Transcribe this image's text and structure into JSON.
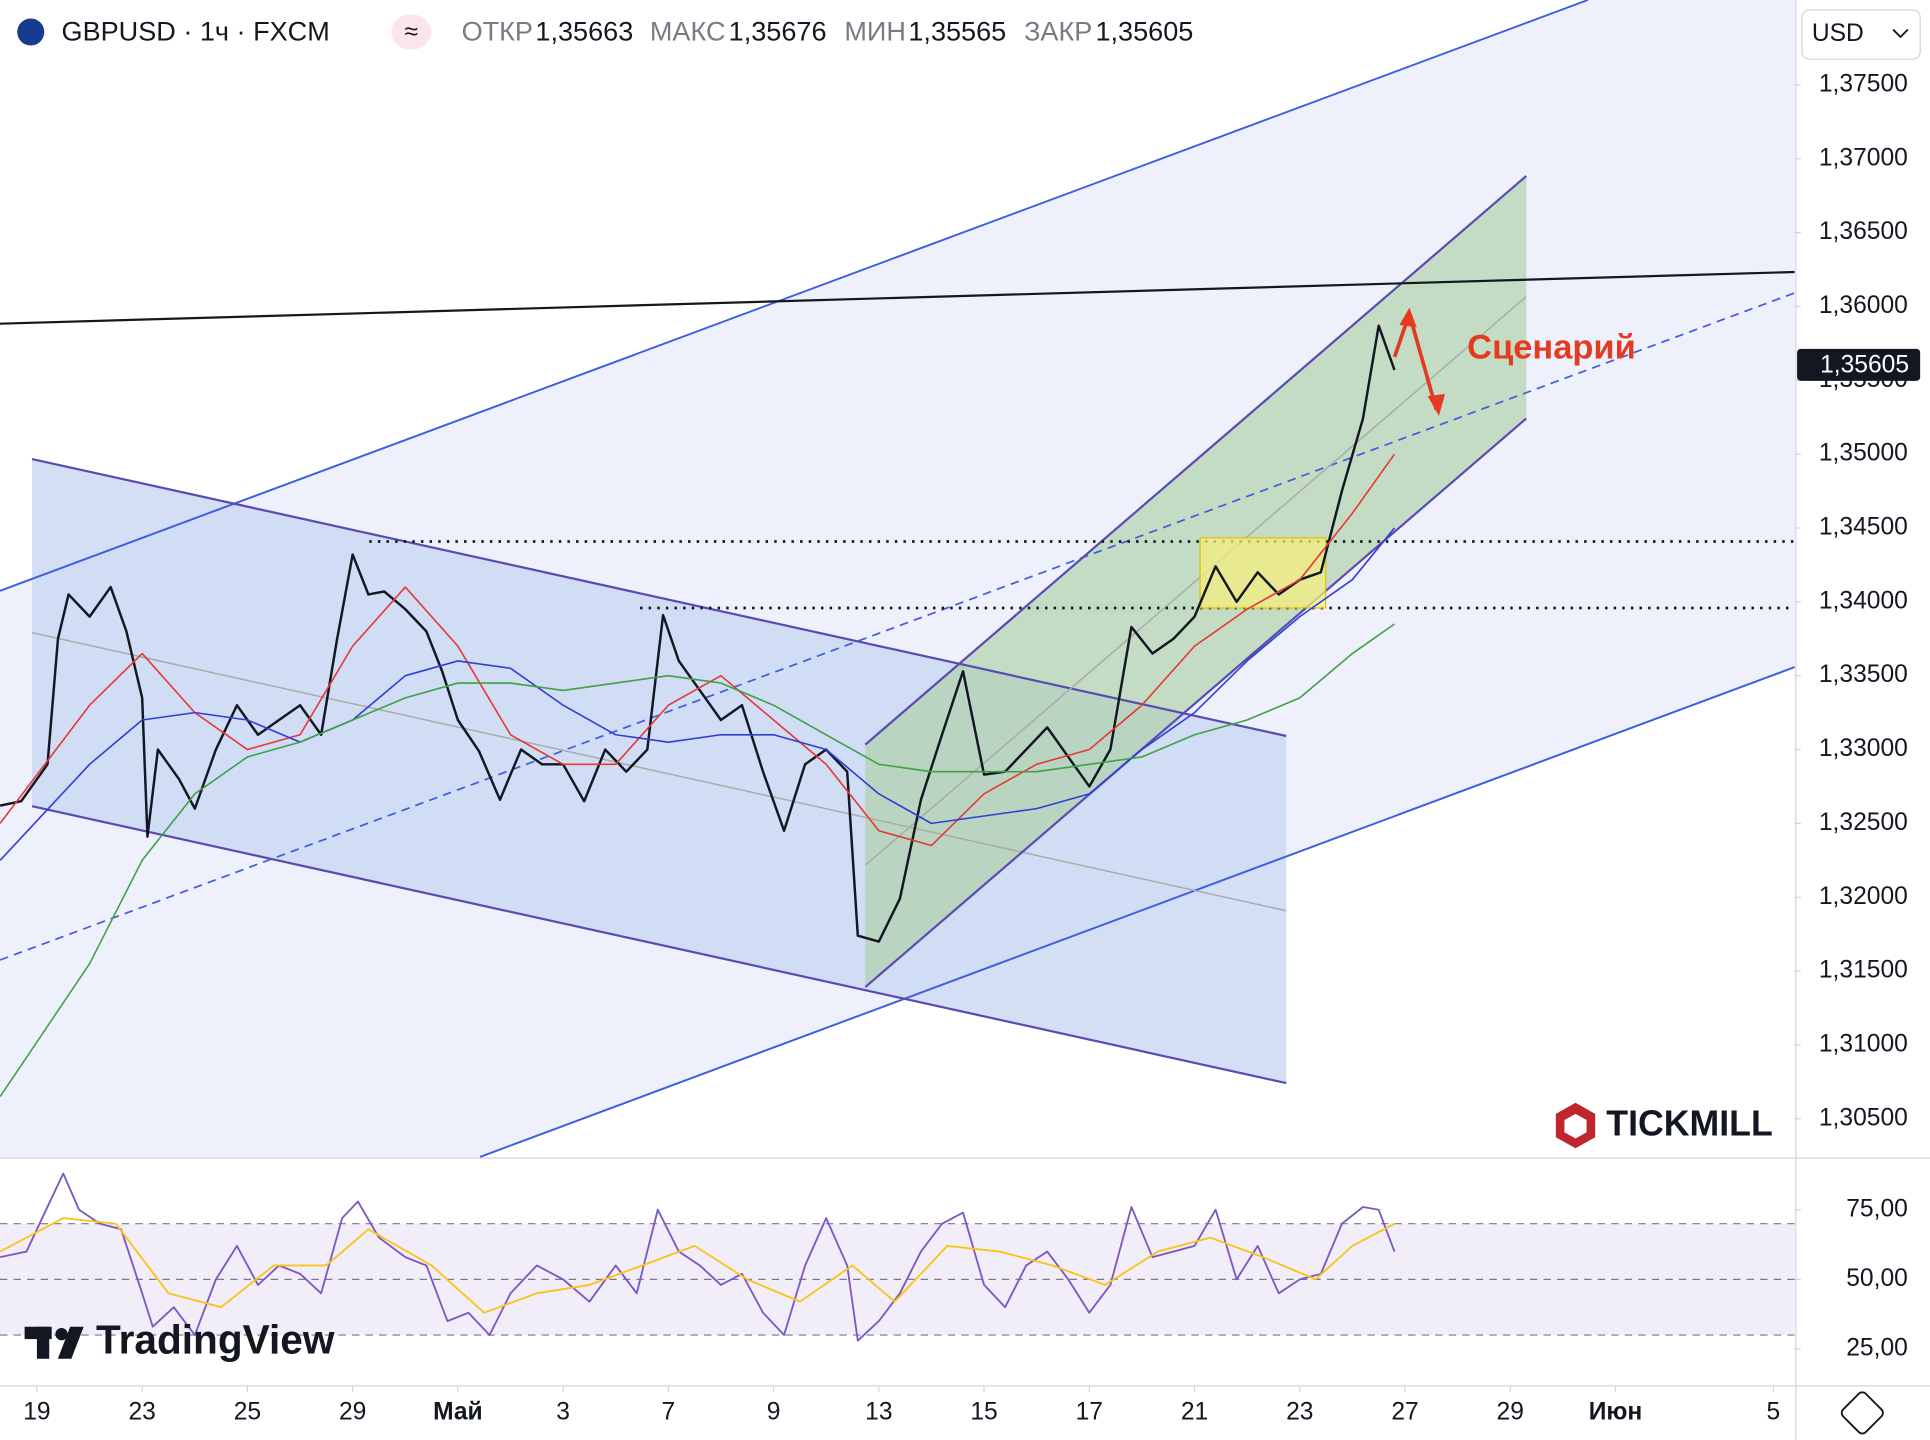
{
  "header": {
    "symbol": "GBPUSD · 1ч · FXCM",
    "ohlc": [
      {
        "label": "ОТКР",
        "value": "1,35663"
      },
      {
        "label": "МАКС",
        "value": "1,35676"
      },
      {
        "label": "МИН",
        "value": "1,35565"
      },
      {
        "label": "ЗАКР",
        "value": "1,35605"
      }
    ],
    "currency": "USD"
  },
  "annotations": {
    "scenario": "Сценарий"
  },
  "watermarks": {
    "broker": "TICKMILL",
    "platform": "TradingView"
  },
  "chart_data": [
    {
      "type": "line",
      "xlim": [
        -0.702,
        33.404
      ],
      "ylim": [
        1.30242,
        1.38075
      ],
      "yticks": [
        {
          "value": 1.305,
          "label": "1,30500"
        },
        {
          "value": 1.31,
          "label": "1,31000"
        },
        {
          "value": 1.315,
          "label": "1,31500"
        },
        {
          "value": 1.32,
          "label": "1,32000"
        },
        {
          "value": 1.325,
          "label": "1,32500"
        },
        {
          "value": 1.33,
          "label": "1,33000"
        },
        {
          "value": 1.335,
          "label": "1,33500"
        },
        {
          "value": 1.34,
          "label": "1,34000"
        },
        {
          "value": 1.345,
          "label": "1,34500"
        },
        {
          "value": 1.35,
          "label": "1,35000"
        },
        {
          "value": 1.355,
          "label": "1,35500"
        },
        {
          "value": 1.36,
          "label": "1,36000"
        },
        {
          "value": 1.365,
          "label": "1,36500"
        },
        {
          "value": 1.37,
          "label": "1,37000"
        },
        {
          "value": 1.375,
          "label": "1,37500"
        }
      ],
      "last_price": 1.35605,
      "series": [
        {
          "color": "#131722",
          "width": 2,
          "x": [
            -0.7,
            -0.3,
            0.2,
            0.4,
            0.6,
            1.0,
            1.4,
            1.7,
            2.0,
            2.1,
            2.3,
            2.7,
            3.0,
            3.4,
            3.8,
            4.2,
            4.6,
            5.0,
            5.4,
            5.7,
            6.0,
            6.3,
            6.6,
            7.0,
            7.4,
            7.7,
            8.0,
            8.4,
            8.8,
            9.2,
            9.6,
            10.0,
            10.4,
            10.8,
            11.2,
            11.6,
            11.9,
            12.2,
            12.6,
            13.0,
            13.4,
            13.8,
            14.2,
            14.6,
            15.0,
            15.4,
            15.6,
            16.0,
            16.4,
            16.8,
            17.2,
            17.6,
            18.0,
            18.4,
            18.8,
            19.2,
            19.6,
            20.0,
            20.4,
            20.8,
            21.2,
            21.6,
            22.0,
            22.4,
            22.8,
            23.2,
            23.6,
            24.0,
            24.4,
            24.8,
            25.2,
            25.5,
            25.8
          ],
          "values": [
            1.3262,
            1.3265,
            1.329,
            1.3375,
            1.3405,
            1.339,
            1.341,
            1.338,
            1.3335,
            1.3241,
            1.33,
            1.328,
            1.326,
            1.33,
            1.333,
            1.331,
            1.332,
            1.333,
            1.331,
            1.3374,
            1.3432,
            1.3405,
            1.3407,
            1.3395,
            1.338,
            1.3353,
            1.332,
            1.3299,
            1.3266,
            1.33,
            1.329,
            1.329,
            1.3265,
            1.33,
            1.3285,
            1.33,
            1.3391,
            1.336,
            1.334,
            1.332,
            1.333,
            1.3285,
            1.3245,
            1.329,
            1.33,
            1.3285,
            1.3174,
            1.317,
            1.3199,
            1.3266,
            1.331,
            1.3353,
            1.3283,
            1.3285,
            1.33,
            1.3315,
            1.3295,
            1.3275,
            1.33,
            1.3383,
            1.3365,
            1.3375,
            1.339,
            1.3424,
            1.34,
            1.342,
            1.3405,
            1.3415,
            1.342,
            1.3475,
            1.3524,
            1.3587,
            1.3557
          ]
        },
        {
          "color": "#e53935",
          "width": 1.3,
          "x": [
            -0.7,
            1,
            2,
            3,
            4,
            5,
            6,
            7,
            8,
            9,
            10,
            11,
            12,
            13,
            14,
            15,
            16,
            17,
            18,
            19,
            20,
            21,
            22,
            23,
            24,
            25,
            25.8
          ],
          "values": [
            1.325,
            1.333,
            1.3365,
            1.3325,
            1.33,
            1.331,
            1.337,
            1.341,
            1.337,
            1.331,
            1.329,
            1.329,
            1.333,
            1.335,
            1.332,
            1.329,
            1.3245,
            1.3235,
            1.327,
            1.329,
            1.33,
            1.333,
            1.337,
            1.3395,
            1.3415,
            1.346,
            1.35
          ]
        },
        {
          "color": "#2f3fd6",
          "width": 1.3,
          "x": [
            -0.7,
            1,
            2,
            3,
            4,
            5,
            6,
            7,
            8,
            9,
            10,
            11,
            12,
            13,
            14,
            15,
            16,
            17,
            18,
            19,
            20,
            21,
            22,
            23,
            24,
            25,
            25.8
          ],
          "values": [
            1.3225,
            1.329,
            1.332,
            1.3325,
            1.332,
            1.3305,
            1.332,
            1.335,
            1.336,
            1.3355,
            1.333,
            1.331,
            1.3305,
            1.331,
            1.331,
            1.33,
            1.327,
            1.325,
            1.3255,
            1.326,
            1.327,
            1.33,
            1.3325,
            1.336,
            1.339,
            1.3415,
            1.345
          ]
        },
        {
          "color": "#43a047",
          "width": 1.3,
          "x": [
            -0.7,
            1,
            2,
            3,
            4,
            5,
            6,
            7,
            8,
            9,
            10,
            11,
            12,
            13,
            14,
            15,
            16,
            17,
            18,
            19,
            20,
            21,
            22,
            23,
            24,
            25,
            25.8
          ],
          "values": [
            1.3065,
            1.3155,
            1.3225,
            1.327,
            1.3295,
            1.3305,
            1.332,
            1.3335,
            1.3345,
            1.3345,
            1.334,
            1.3345,
            1.335,
            1.3345,
            1.333,
            1.331,
            1.329,
            1.3285,
            1.3285,
            1.3285,
            1.329,
            1.3295,
            1.331,
            1.332,
            1.3335,
            1.3365,
            1.3385
          ]
        }
      ]
    },
    {
      "type": "line",
      "xlim": [
        -0.702,
        33.404
      ],
      "ylim": [
        12.2,
        93.1
      ],
      "yticks": [
        {
          "value": 25,
          "label": "25,00"
        },
        {
          "value": 50,
          "label": "50,00"
        },
        {
          "value": 75,
          "label": "75,00"
        }
      ],
      "band": [
        30,
        70
      ],
      "hlines": [
        70,
        50,
        30
      ],
      "xticks": [
        {
          "value": 0,
          "label": "19"
        },
        {
          "value": 2,
          "label": "23"
        },
        {
          "value": 4,
          "label": "25"
        },
        {
          "value": 6,
          "label": "29"
        },
        {
          "value": 8,
          "label": "Май"
        },
        {
          "value": 10,
          "label": "3"
        },
        {
          "value": 12,
          "label": "7"
        },
        {
          "value": 14,
          "label": "9"
        },
        {
          "value": 16,
          "label": "13"
        },
        {
          "value": 18,
          "label": "15"
        },
        {
          "value": 20,
          "label": "17"
        },
        {
          "value": 22,
          "label": "21"
        },
        {
          "value": 24,
          "label": "23"
        },
        {
          "value": 26,
          "label": "27"
        },
        {
          "value": 28,
          "label": "29"
        },
        {
          "value": 30,
          "label": "Июн"
        },
        {
          "value": 33,
          "label": "5"
        }
      ],
      "series": [
        {
          "color": "#7e57c2",
          "width": 1.5,
          "x": [
            -0.7,
            -0.2,
            0.3,
            0.5,
            0.8,
            1.2,
            1.6,
            2.0,
            2.2,
            2.6,
            3.0,
            3.4,
            3.8,
            4.2,
            4.6,
            5.0,
            5.4,
            5.8,
            6.1,
            6.5,
            7.0,
            7.4,
            7.8,
            8.2,
            8.6,
            9.0,
            9.5,
            10.0,
            10.5,
            11.0,
            11.4,
            11.8,
            12.2,
            12.6,
            13.0,
            13.4,
            13.8,
            14.2,
            14.6,
            15.0,
            15.4,
            15.6,
            16.0,
            16.4,
            16.8,
            17.2,
            17.6,
            18.0,
            18.4,
            18.8,
            19.2,
            19.6,
            20.0,
            20.4,
            20.8,
            21.2,
            21.6,
            22.0,
            22.4,
            22.8,
            23.2,
            23.6,
            24.0,
            24.4,
            24.8,
            25.2,
            25.5,
            25.8
          ],
          "values": [
            58,
            60,
            80,
            88,
            75,
            70,
            68,
            45,
            33,
            40,
            30,
            50,
            62,
            48,
            55,
            52,
            45,
            72,
            78,
            65,
            58,
            55,
            35,
            38,
            30,
            45,
            55,
            50,
            42,
            55,
            45,
            75,
            60,
            55,
            48,
            52,
            38,
            30,
            55,
            72,
            55,
            28,
            35,
            45,
            60,
            70,
            74,
            48,
            40,
            55,
            60,
            50,
            38,
            48,
            76,
            58,
            60,
            62,
            75,
            50,
            62,
            45,
            50,
            52,
            70,
            76,
            75,
            60
          ]
        },
        {
          "color": "#f9c41a",
          "width": 1.5,
          "x": [
            -0.7,
            0.5,
            1.5,
            2.5,
            3.5,
            4.5,
            5.5,
            6.3,
            7.5,
            8.5,
            9.5,
            10.5,
            11.5,
            12.5,
            13.5,
            14.5,
            15.5,
            16.3,
            17.3,
            18.3,
            19.3,
            20.3,
            21.3,
            22.3,
            23.3,
            24.3,
            25.0,
            25.8
          ],
          "values": [
            60,
            72,
            70,
            45,
            40,
            55,
            55,
            68,
            55,
            38,
            45,
            48,
            55,
            62,
            50,
            42,
            55,
            42,
            62,
            60,
            55,
            48,
            60,
            65,
            58,
            50,
            62,
            70
          ]
        }
      ]
    }
  ]
}
